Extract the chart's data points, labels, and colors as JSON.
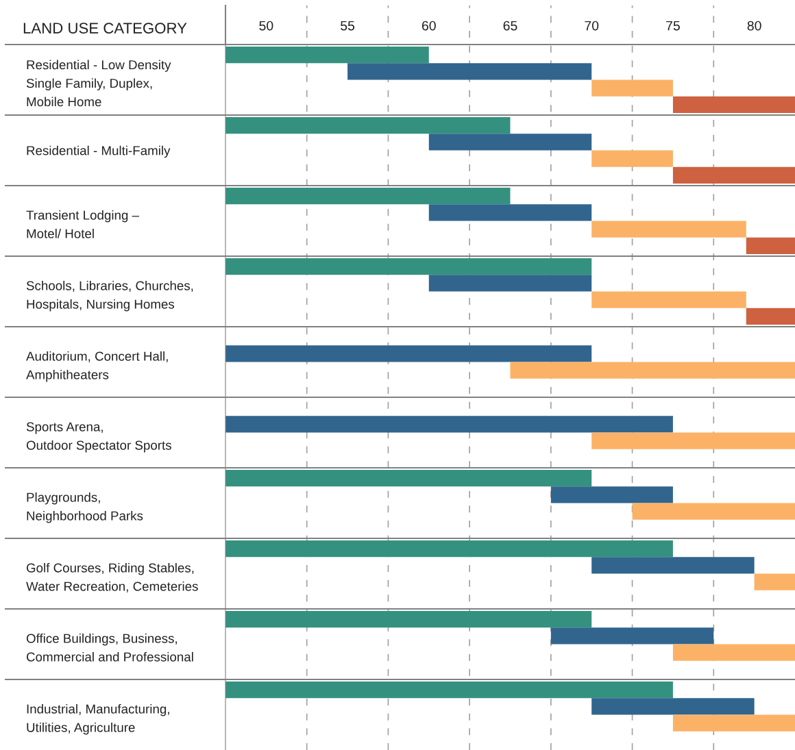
{
  "chart_data": {
    "type": "bar",
    "orientation": "horizontal",
    "ylabel": "LAND USE CATEGORY",
    "categories": [
      "Residential - Low Density\nSingle Family, Duplex,\nMobile Home",
      "Residential - Multi-Family",
      "Transient Lodging –\nMotel/ Hotel",
      "Schools, Libraries, Churches,\nHospitals, Nursing Homes",
      "Auditorium, Concert Hall,\nAmphitheaters",
      "Sports Arena,\nOutdoor Spectator Sports",
      "Playgrounds,\nNeighborhood Parks",
      "Golf Courses, Riding Stables,\nWater Recreation, Cemeteries",
      "Office Buildings, Business,\nCommercial and Professional",
      "Industrial, Manufacturing,\nUtilities, Agriculture"
    ],
    "series": [
      {
        "color": "#35917f",
        "base": [
          47.5,
          47.5,
          47.5,
          47.5,
          null,
          null,
          47.5,
          47.5,
          47.5,
          47.5
        ],
        "values": [
          12.5,
          17.5,
          17.5,
          22.5,
          null,
          null,
          22.5,
          27.5,
          22.5,
          27.5
        ]
      },
      {
        "color": "#31658e",
        "base": [
          55,
          60,
          60,
          60,
          47.5,
          47.5,
          67.5,
          70,
          67.5,
          70
        ],
        "values": [
          15,
          10,
          10,
          10,
          22.5,
          27.5,
          7.5,
          10,
          10,
          10
        ]
      },
      {
        "color": "#fbb266",
        "base": [
          70,
          70,
          70,
          70,
          65,
          70,
          72.5,
          80,
          75,
          75
        ],
        "values": [
          5,
          5,
          9.5,
          9.5,
          17.5,
          12.5,
          10,
          2.5,
          7.5,
          7.5
        ]
      },
      {
        "color": "#cd6140",
        "base": [
          75,
          75,
          79.5,
          79.5,
          null,
          null,
          null,
          null,
          null,
          null
        ],
        "values": [
          7.5,
          7.5,
          3,
          3,
          null,
          null,
          null,
          null,
          null,
          null
        ]
      }
    ],
    "xlim": [
      47.5,
      82.5
    ],
    "xticks": [
      50,
      55,
      60,
      65,
      70,
      75,
      80
    ],
    "ref_lines": [
      {
        "axis": "x",
        "value": 52.5,
        "label": null,
        "color": "#a0a0a0",
        "line_style": "dashed"
      },
      {
        "axis": "x",
        "value": 57.5,
        "label": null,
        "color": "#a0a0a0",
        "line_style": "dashed"
      },
      {
        "axis": "x",
        "value": 62.5,
        "label": null,
        "color": "#a0a0a0",
        "line_style": "dashed"
      },
      {
        "axis": "x",
        "value": 67.5,
        "label": null,
        "color": "#a0a0a0",
        "line_style": "dashed"
      },
      {
        "axis": "x",
        "value": 72.5,
        "label": null,
        "color": "#a0a0a0",
        "line_style": "dashed"
      },
      {
        "axis": "x",
        "value": 77.5,
        "label": null,
        "color": "#a0a0a0",
        "line_style": "dashed"
      }
    ],
    "grid": false
  }
}
